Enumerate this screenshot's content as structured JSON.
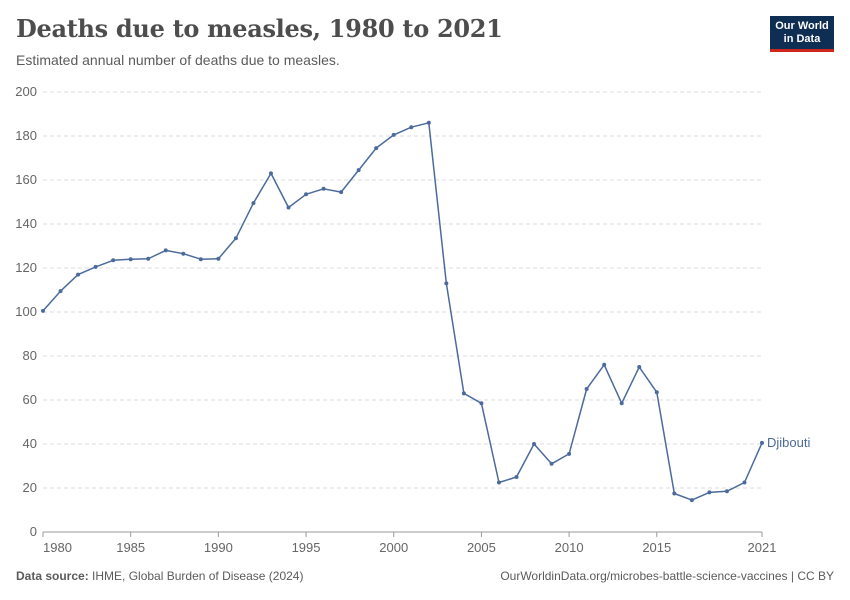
{
  "header": {
    "title": "Deaths due to measles, 1980 to 2021",
    "subtitle": "Estimated annual number of deaths due to measles."
  },
  "logo": {
    "line1": "Our World",
    "line2": "in Data"
  },
  "footer": {
    "source_label": "Data source:",
    "source_text": " IHME, Global Burden of Disease (2024)",
    "url": "OurWorldinData.org/microbes-battle-science-vaccines | CC BY"
  },
  "colors": {
    "series": "#4c6a9c",
    "grid": "#dddddd",
    "axis": "#999999"
  },
  "chart_data": {
    "type": "line",
    "title": "Deaths due to measles, 1980 to 2021",
    "subtitle": "Estimated annual number of deaths due to measles.",
    "xlabel": "",
    "ylabel": "",
    "xlim": [
      1980,
      2021
    ],
    "ylim": [
      0,
      200
    ],
    "x_ticks": [
      1980,
      1985,
      1990,
      1995,
      2000,
      2005,
      2010,
      2015,
      2021
    ],
    "y_ticks": [
      0,
      20,
      40,
      60,
      80,
      100,
      120,
      140,
      160,
      180,
      200
    ],
    "grid": "horizontal dashed",
    "legend": "end-of-line label",
    "series": [
      {
        "name": "Djibouti",
        "x": [
          1980,
          1981,
          1982,
          1983,
          1984,
          1985,
          1986,
          1987,
          1988,
          1989,
          1990,
          1991,
          1992,
          1993,
          1994,
          1995,
          1996,
          1997,
          1998,
          1999,
          2000,
          2001,
          2002,
          2003,
          2004,
          2005,
          2006,
          2007,
          2008,
          2009,
          2010,
          2011,
          2012,
          2013,
          2014,
          2015,
          2016,
          2017,
          2018,
          2019,
          2020,
          2021
        ],
        "values": [
          100.5,
          109.5,
          117,
          120.5,
          123.5,
          124,
          124.2,
          128,
          126.5,
          124,
          124.2,
          133.5,
          149.5,
          163,
          147.5,
          153.5,
          156,
          154.5,
          164.5,
          174.5,
          180.5,
          184,
          186,
          113,
          63,
          58.5,
          22.5,
          25,
          40,
          31,
          35.5,
          65,
          76,
          58.5,
          75,
          63.5,
          17.5,
          14.5,
          18,
          18.5,
          22.5,
          40.5
        ]
      }
    ]
  }
}
